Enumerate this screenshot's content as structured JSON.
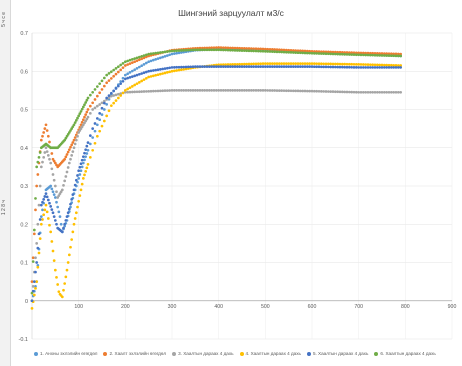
{
  "sidebar": {
    "left_labels": [
      "5 ч с е",
      "1 2 8 ч"
    ]
  },
  "chart_data": {
    "type": "scatter",
    "title": "Шингэний зарцуулалт м3/с",
    "xlabel": "",
    "ylabel": "",
    "xlim": [
      0,
      900
    ],
    "ylim": [
      -0.1,
      0.7
    ],
    "xticks": [
      "100",
      "200",
      "300",
      "400",
      "500",
      "600",
      "700",
      "800",
      "900"
    ],
    "yticks": [
      "-0.1",
      "0",
      "0.1",
      "0.2",
      "0.3",
      "0.4",
      "0.5",
      "0.6",
      "0.7"
    ],
    "grid": true,
    "legend_position": "bottom",
    "series": [
      {
        "name": "1. Анхны эхлэлийн өгөгдөл",
        "color": "#5b9bd5",
        "points": [
          [
            0,
            0.0
          ],
          [
            10,
            0.05
          ],
          [
            20,
            0.22
          ],
          [
            30,
            0.29
          ],
          [
            40,
            0.3
          ],
          [
            50,
            0.27
          ],
          [
            60,
            0.22
          ],
          [
            65,
            0.18
          ],
          [
            75,
            0.21
          ],
          [
            90,
            0.28
          ],
          [
            110,
            0.36
          ],
          [
            140,
            0.46
          ],
          [
            170,
            0.54
          ],
          [
            200,
            0.59
          ],
          [
            250,
            0.625
          ],
          [
            300,
            0.645
          ],
          [
            350,
            0.655
          ],
          [
            400,
            0.658
          ],
          [
            450,
            0.658
          ],
          [
            500,
            0.657
          ],
          [
            600,
            0.65
          ],
          [
            700,
            0.645
          ],
          [
            790,
            0.64
          ]
        ]
      },
      {
        "name": "2. Хаалт эхлэлийн өгөгдөл",
        "color": "#ed7d31",
        "points": [
          [
            0,
            0.05
          ],
          [
            10,
            0.3
          ],
          [
            20,
            0.42
          ],
          [
            30,
            0.46
          ],
          [
            35,
            0.43
          ],
          [
            45,
            0.37
          ],
          [
            55,
            0.35
          ],
          [
            70,
            0.37
          ],
          [
            90,
            0.42
          ],
          [
            120,
            0.5
          ],
          [
            160,
            0.57
          ],
          [
            200,
            0.615
          ],
          [
            250,
            0.64
          ],
          [
            300,
            0.655
          ],
          [
            350,
            0.66
          ],
          [
            400,
            0.662
          ],
          [
            500,
            0.658
          ],
          [
            600,
            0.652
          ],
          [
            700,
            0.648
          ],
          [
            790,
            0.645
          ]
        ]
      },
      {
        "name": "3. Хаалтын дараах 4 дахь",
        "color": "#a5a5a5",
        "points": [
          [
            0,
            0.0
          ],
          [
            10,
            0.15
          ],
          [
            20,
            0.35
          ],
          [
            30,
            0.4
          ],
          [
            40,
            0.36
          ],
          [
            50,
            0.3
          ],
          [
            55,
            0.27
          ],
          [
            65,
            0.29
          ],
          [
            80,
            0.36
          ],
          [
            100,
            0.44
          ],
          [
            130,
            0.5
          ],
          [
            170,
            0.535
          ],
          [
            200,
            0.545
          ],
          [
            300,
            0.55
          ],
          [
            400,
            0.55
          ],
          [
            500,
            0.55
          ],
          [
            600,
            0.548
          ],
          [
            700,
            0.545
          ],
          [
            790,
            0.545
          ]
        ]
      },
      {
        "name": "4. Хаалтын дараах 4 дахь",
        "color": "#ffc000",
        "points": [
          [
            0,
            -0.02
          ],
          [
            10,
            0.05
          ],
          [
            20,
            0.2
          ],
          [
            30,
            0.25
          ],
          [
            40,
            0.18
          ],
          [
            50,
            0.08
          ],
          [
            58,
            0.02
          ],
          [
            65,
            0.01
          ],
          [
            75,
            0.08
          ],
          [
            90,
            0.2
          ],
          [
            110,
            0.32
          ],
          [
            140,
            0.43
          ],
          [
            170,
            0.51
          ],
          [
            200,
            0.55
          ],
          [
            250,
            0.585
          ],
          [
            300,
            0.6
          ],
          [
            350,
            0.61
          ],
          [
            400,
            0.617
          ],
          [
            500,
            0.62
          ],
          [
            600,
            0.62
          ],
          [
            700,
            0.618
          ],
          [
            790,
            0.615
          ]
        ]
      },
      {
        "name": "5. Хаалтын дараах 4 дахь",
        "color": "#4472c4",
        "points": [
          [
            0,
            0.0
          ],
          [
            10,
            0.1
          ],
          [
            20,
            0.25
          ],
          [
            30,
            0.28
          ],
          [
            45,
            0.23
          ],
          [
            55,
            0.19
          ],
          [
            65,
            0.18
          ],
          [
            80,
            0.24
          ],
          [
            100,
            0.34
          ],
          [
            130,
            0.45
          ],
          [
            160,
            0.53
          ],
          [
            200,
            0.58
          ],
          [
            250,
            0.6
          ],
          [
            300,
            0.61
          ],
          [
            350,
            0.612
          ],
          [
            400,
            0.612
          ],
          [
            500,
            0.612
          ],
          [
            600,
            0.612
          ],
          [
            700,
            0.61
          ],
          [
            790,
            0.61
          ]
        ]
      },
      {
        "name": "6. Хаалтын дараах 4 дахь",
        "color": "#70ad47",
        "points": [
          [
            0,
            0.02
          ],
          [
            10,
            0.35
          ],
          [
            20,
            0.4
          ],
          [
            30,
            0.41
          ],
          [
            40,
            0.4
          ],
          [
            55,
            0.4
          ],
          [
            70,
            0.42
          ],
          [
            90,
            0.46
          ],
          [
            120,
            0.53
          ],
          [
            160,
            0.59
          ],
          [
            200,
            0.625
          ],
          [
            250,
            0.645
          ],
          [
            300,
            0.653
          ],
          [
            350,
            0.656
          ],
          [
            400,
            0.656
          ],
          [
            500,
            0.652
          ],
          [
            600,
            0.647
          ],
          [
            700,
            0.643
          ],
          [
            790,
            0.64
          ]
        ]
      }
    ]
  }
}
